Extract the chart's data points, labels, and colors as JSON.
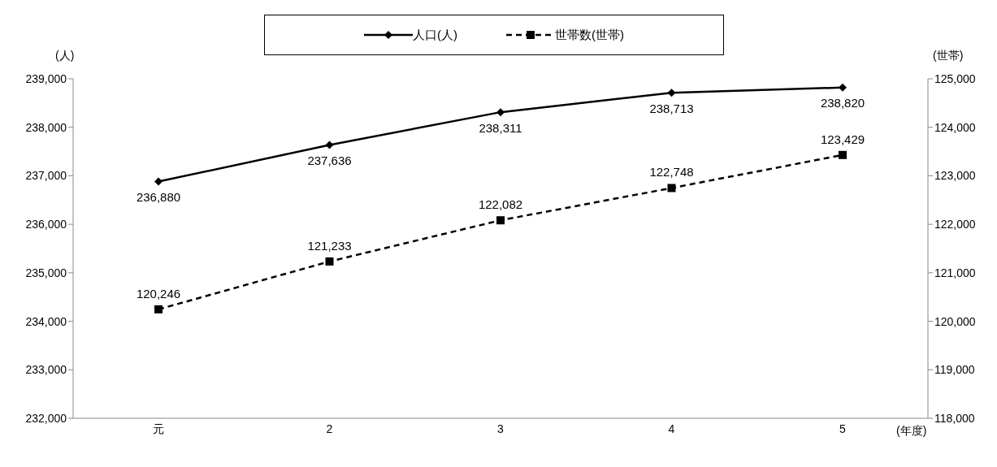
{
  "chart_data": {
    "type": "line",
    "categories": [
      "元",
      "2",
      "3",
      "4",
      "5"
    ],
    "xlabel": "(年度)",
    "ylabel": "(人)",
    "y2label": "(世帯)",
    "series": [
      {
        "name": "人口(人)",
        "color": "#000000",
        "values": [
          236880,
          237636,
          238311,
          238713,
          238820
        ],
        "value_labels": [
          "236,880",
          "237,636",
          "238,311",
          "238,713",
          "238,820"
        ],
        "marker": "diamond",
        "line_style": "solid"
      },
      {
        "name": "世帯数(世帯)",
        "color": "#000000",
        "values": [
          120246,
          121233,
          122082,
          122748,
          123429
        ],
        "value_labels": [
          "120,246",
          "121,233",
          "122,082",
          "122,748",
          "123,429"
        ],
        "marker": "square",
        "line_style": "dashed",
        "axis": "y2"
      }
    ],
    "ylim": [
      232000,
      239000
    ],
    "yticks": [
      {
        "value": 232000,
        "label": "232,000"
      },
      {
        "value": 233000,
        "label": "233,000"
      },
      {
        "value": 234000,
        "label": "234,000"
      },
      {
        "value": 235000,
        "label": "235,000"
      },
      {
        "value": 236000,
        "label": "236,000"
      },
      {
        "value": 237000,
        "label": "237,000"
      },
      {
        "value": 238000,
        "label": "238,000"
      },
      {
        "value": 239000,
        "label": "239,000"
      }
    ],
    "y2lim": [
      118000,
      125000
    ],
    "y2ticks": [
      {
        "value": 118000,
        "label": "118,000"
      },
      {
        "value": 119000,
        "label": "119,000"
      },
      {
        "value": 120000,
        "label": "120,000"
      },
      {
        "value": 121000,
        "label": "121,000"
      },
      {
        "value": 122000,
        "label": "122,000"
      },
      {
        "value": 123000,
        "label": "123,000"
      },
      {
        "value": 124000,
        "label": "124,000"
      },
      {
        "value": 125000,
        "label": "125,000"
      }
    ],
    "grid": false,
    "legend": "top"
  }
}
